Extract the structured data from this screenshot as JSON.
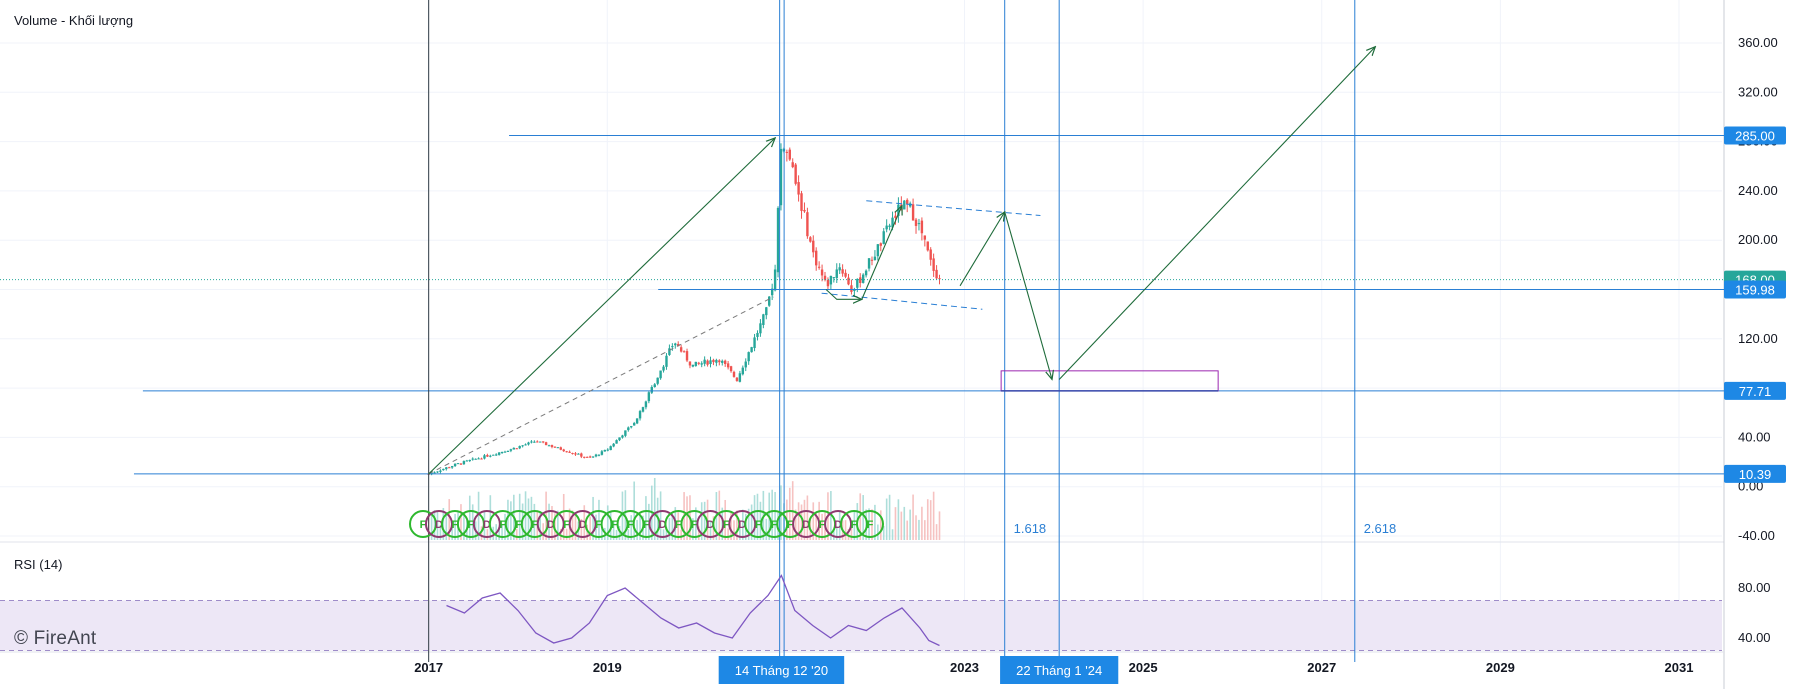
{
  "app": {
    "volume_label": "Volume - Khối lượng",
    "rsi_label": "RSI (14)",
    "watermark": "© FireAnt"
  },
  "colors": {
    "up": "#26a69a",
    "down": "#ef5350",
    "hline": "#2a7fd4",
    "arrow": "#1e6b3a",
    "rsi": "#7e57c2",
    "rsi_band": "#ede7f6",
    "fib_text": "#2a7fd4",
    "box": "#9c27b0",
    "price_badge": "#1e88e5",
    "last_badge": "#26a69a",
    "event_circle": "#2eb82e",
    "grid": "#f0f3fa"
  },
  "chart_data": [
    {
      "type": "candlestick",
      "title": "",
      "price_axis_ticks": [
        "360.00",
        "320.00",
        "280.00",
        "240.00",
        "200.00",
        "160.00",
        "120.00",
        "80.00",
        "40.00",
        "0.00",
        "-40.00"
      ],
      "ylim": [
        -40,
        380
      ],
      "time_axis_ticks": [
        {
          "label": "2017",
          "year": 2017.0
        },
        {
          "label": "2019",
          "year": 2019.0
        },
        {
          "label": "2023",
          "year": 2023.0
        },
        {
          "label": "2025",
          "year": 2025.0
        },
        {
          "label": "2027",
          "year": 2027.0
        },
        {
          "label": "2029",
          "year": 2029.0
        },
        {
          "label": "2031",
          "year": 2031.0
        }
      ],
      "xlim": [
        2012.2,
        2032.4
      ],
      "time_badges": [
        {
          "label": "14 Tháng 12 '20",
          "year": 2020.95
        },
        {
          "label": "22 Tháng 1 '24",
          "year": 2024.06
        }
      ],
      "price_badges": [
        {
          "label": "285.00",
          "value": 285.0
        },
        {
          "label": "168.00",
          "value": 168.0,
          "last": true
        },
        {
          "label": "159.98",
          "value": 159.98
        },
        {
          "label": "77.71",
          "value": 77.71
        },
        {
          "label": "10.39",
          "value": 10.39
        }
      ],
      "horizontal_levels": [
        {
          "value": 285.0,
          "from": 2017.9
        },
        {
          "value": 159.98,
          "from": 2019.57
        },
        {
          "value": 77.71,
          "from": 2013.8
        },
        {
          "value": 10.39,
          "from": 2013.7
        }
      ],
      "last_price": 168.0,
      "vertical_lines": [
        {
          "year": 2017.0
        },
        {
          "year": 2020.93
        },
        {
          "year": 2020.98
        },
        {
          "year": 2023.45
        },
        {
          "year": 2024.06
        },
        {
          "year": 2027.37
        }
      ],
      "fib_labels": [
        {
          "label": "1.618",
          "year": 2023.55
        },
        {
          "label": "2.618",
          "year": 2027.47
        }
      ],
      "price_path": [
        [
          2017.0,
          10.4
        ],
        [
          2017.3,
          18
        ],
        [
          2017.6,
          24
        ],
        [
          2017.9,
          30
        ],
        [
          2018.2,
          37
        ],
        [
          2018.5,
          30
        ],
        [
          2018.8,
          23
        ],
        [
          2019.0,
          30
        ],
        [
          2019.3,
          52
        ],
        [
          2019.5,
          80
        ],
        [
          2019.75,
          118
        ],
        [
          2019.95,
          98
        ],
        [
          2020.25,
          104
        ],
        [
          2020.45,
          87
        ],
        [
          2020.6,
          112
        ],
        [
          2020.78,
          142
        ],
        [
          2020.88,
          175
        ],
        [
          2020.95,
          283
        ],
        [
          2021.05,
          262
        ],
        [
          2021.15,
          236
        ],
        [
          2021.3,
          190
        ],
        [
          2021.45,
          163
        ],
        [
          2021.6,
          180
        ],
        [
          2021.75,
          158
        ],
        [
          2021.9,
          178
        ],
        [
          2022.05,
          196
        ],
        [
          2022.2,
          218
        ],
        [
          2022.3,
          228
        ],
        [
          2022.4,
          225
        ],
        [
          2022.5,
          210
        ],
        [
          2022.62,
          182
        ],
        [
          2022.72,
          168
        ]
      ],
      "wave_arrows": [
        {
          "from": [
            2017.0,
            10.4
          ],
          "to": [
            2020.88,
            283
          ]
        },
        {
          "from": [
            2021.45,
            160
          ],
          "to": [
            2021.85,
            152
          ],
          "mid": [
            2021.57,
            152
          ]
        },
        {
          "from": [
            2021.85,
            152
          ],
          "to": [
            2022.3,
            228
          ]
        },
        {
          "from": [
            2022.95,
            163
          ],
          "to": [
            2023.45,
            223
          ]
        },
        {
          "from": [
            2023.45,
            223
          ],
          "to": [
            2023.98,
            87
          ]
        },
        {
          "from": [
            2024.06,
            87
          ],
          "to": [
            2027.6,
            357
          ]
        }
      ],
      "channel_lines": [
        {
          "from": [
            2021.9,
            232
          ],
          "to": [
            2023.85,
            220
          ]
        },
        {
          "from": [
            2021.4,
            157
          ],
          "to": [
            2023.2,
            144
          ]
        }
      ],
      "dashed_trend": {
        "from": [
          2017.0,
          10.4
        ],
        "to": [
          2020.86,
          154
        ]
      },
      "target_box": {
        "x0": 2023.41,
        "x1": 2025.84,
        "y0": 77.71,
        "y1": 94
      },
      "event_markers": [
        "F",
        "D",
        "F",
        "F",
        "D",
        "F",
        "F",
        "F",
        "D",
        "F",
        "D",
        "F",
        "F",
        "F",
        "F",
        "D",
        "F",
        "F",
        "D",
        "F",
        "D",
        "F",
        "F",
        "F",
        "D",
        "F",
        "D",
        "F",
        "F"
      ]
    },
    {
      "type": "line",
      "title": "RSI (14)",
      "ticks": [
        "80.00",
        "40.00"
      ],
      "ylim": [
        22,
        98
      ],
      "band": [
        30,
        70
      ],
      "values": [
        [
          2017.2,
          66
        ],
        [
          2017.4,
          60
        ],
        [
          2017.6,
          72
        ],
        [
          2017.8,
          76
        ],
        [
          2018.0,
          62
        ],
        [
          2018.2,
          44
        ],
        [
          2018.4,
          36
        ],
        [
          2018.6,
          40
        ],
        [
          2018.8,
          52
        ],
        [
          2019.0,
          74
        ],
        [
          2019.2,
          80
        ],
        [
          2019.4,
          68
        ],
        [
          2019.6,
          56
        ],
        [
          2019.8,
          48
        ],
        [
          2020.0,
          52
        ],
        [
          2020.2,
          44
        ],
        [
          2020.4,
          40
        ],
        [
          2020.6,
          60
        ],
        [
          2020.8,
          74
        ],
        [
          2020.95,
          90
        ],
        [
          2021.1,
          62
        ],
        [
          2021.3,
          50
        ],
        [
          2021.5,
          40
        ],
        [
          2021.7,
          50
        ],
        [
          2021.9,
          46
        ],
        [
          2022.1,
          56
        ],
        [
          2022.3,
          64
        ],
        [
          2022.5,
          48
        ],
        [
          2022.6,
          38
        ],
        [
          2022.72,
          34
        ]
      ]
    }
  ]
}
